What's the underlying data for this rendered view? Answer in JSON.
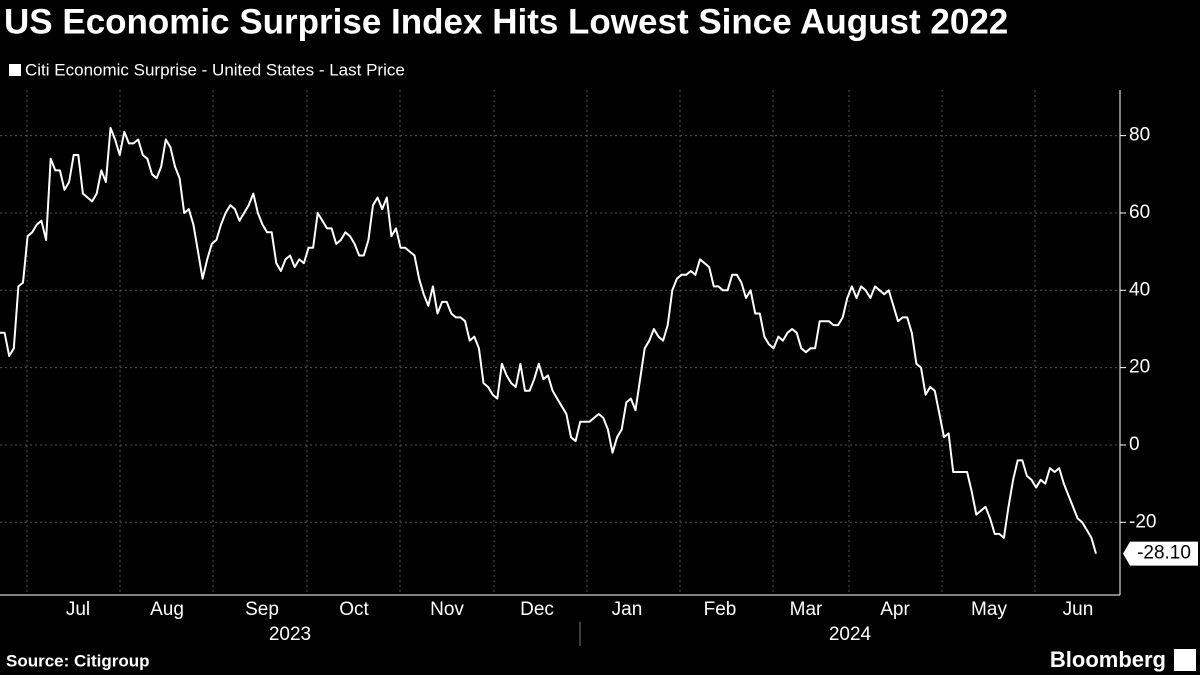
{
  "chart_data": {
    "type": "line",
    "title": "US Economic Surprise Index Hits Lowest Since August 2022",
    "source": "Source: Citigroup",
    "brand": "Bloomberg",
    "months": [
      "Jul",
      "Aug",
      "Sep",
      "Oct",
      "Nov",
      "Dec",
      "Jan",
      "Feb",
      "Mar",
      "Apr",
      "May",
      "Jun"
    ],
    "years": [
      "2023",
      "2024"
    ],
    "series": [
      {
        "name": "Citi Economic Surprise - United States - Last Price",
        "color": "#ffffff",
        "values": [
          29,
          29,
          23,
          25,
          41,
          42,
          54,
          55,
          57,
          58,
          53,
          74,
          71,
          71,
          66,
          68,
          75,
          75,
          65,
          64,
          63,
          65,
          71,
          68,
          82,
          79,
          75,
          81,
          78,
          78,
          79,
          75,
          74,
          70,
          69,
          72,
          79,
          77,
          72,
          69,
          60,
          61,
          57,
          50,
          43,
          48,
          52,
          53,
          57,
          60,
          62,
          61,
          58,
          60,
          62,
          65,
          60,
          57,
          55,
          55,
          47,
          45,
          48,
          49,
          46,
          48,
          47,
          51,
          51,
          60,
          58,
          56,
          56,
          52,
          53,
          55,
          54,
          52,
          49,
          49,
          53,
          62,
          64,
          61,
          64,
          54,
          56,
          51,
          51,
          50,
          49,
          43,
          39,
          36,
          41,
          34,
          37,
          37,
          34,
          33,
          33,
          32,
          27,
          28,
          25,
          16,
          15,
          13,
          12,
          21,
          18,
          16,
          15,
          21,
          14,
          14,
          17,
          21,
          17,
          18,
          14,
          12,
          10,
          8,
          2,
          1,
          6,
          6,
          6,
          7,
          8,
          7,
          4,
          -2,
          2,
          4,
          11,
          12,
          9,
          17,
          25,
          27,
          30,
          28,
          27,
          31,
          40,
          43,
          44,
          44,
          45,
          44,
          48,
          47,
          46,
          41,
          41,
          40,
          40,
          44,
          44,
          42,
          38,
          40,
          34,
          34,
          28,
          26,
          25,
          28,
          27,
          29,
          30,
          29,
          25,
          24,
          25,
          25,
          32,
          32,
          32,
          31,
          31,
          33,
          38,
          41,
          38,
          41,
          40,
          38,
          41,
          40,
          39,
          40,
          36,
          32,
          33,
          33,
          29,
          21,
          20,
          13,
          15,
          14,
          8,
          2,
          3,
          -7,
          -7,
          -7,
          -7,
          -12,
          -18,
          -17,
          -16,
          -19,
          -23,
          -23,
          -24,
          -16,
          -9,
          -4,
          -4,
          -8,
          -9,
          -11,
          -9,
          -10,
          -6,
          -7,
          -6,
          -10,
          -13,
          -16,
          -19,
          -20,
          -22,
          -24,
          -28.1
        ]
      }
    ],
    "last_price": {
      "value": -28.1,
      "label": "-28.10"
    },
    "ylim": [
      -38.8,
      91.8
    ],
    "yticks": [
      -20,
      0,
      20,
      40,
      60,
      80
    ],
    "grid": true
  }
}
